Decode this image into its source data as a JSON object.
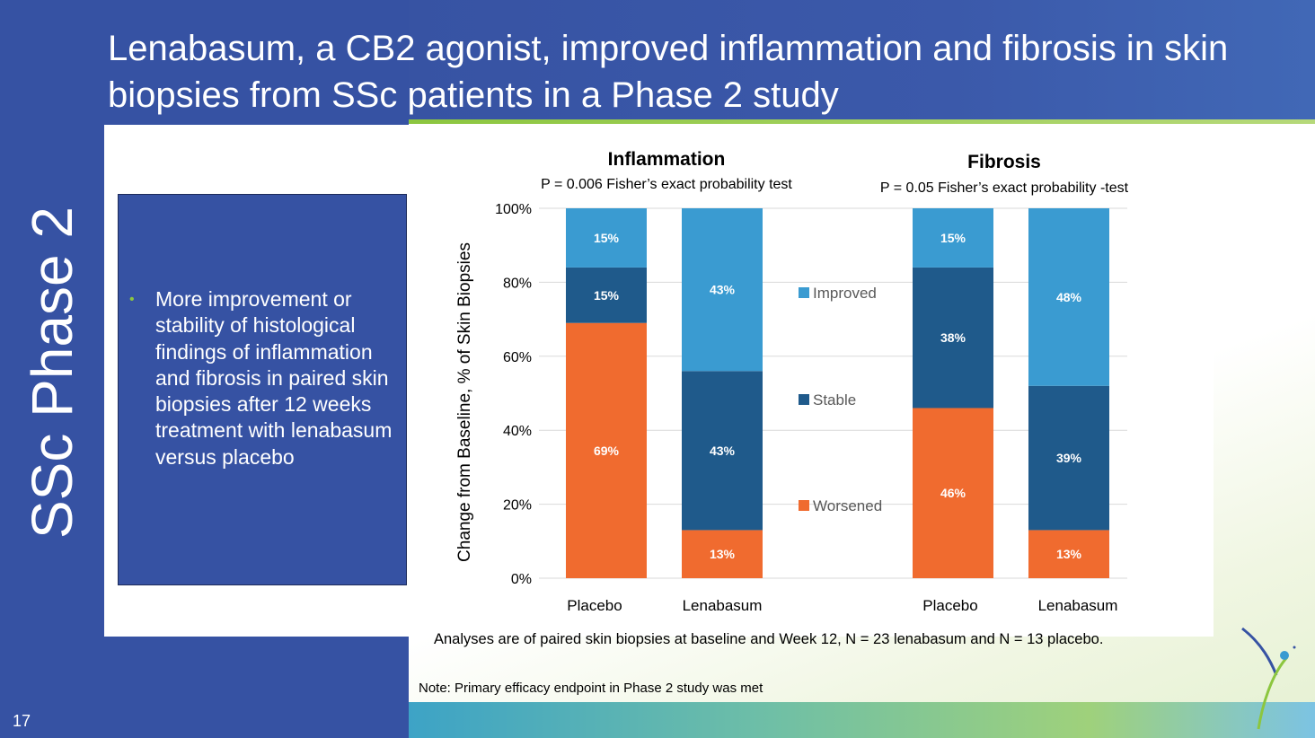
{
  "slide": {
    "title": "Lenabasum, a CB2 agonist, improved inflammation and fibrosis in skin biopsies from SSc patients in a Phase 2 study",
    "section_label": "SSc Phase 2",
    "page_number": "17",
    "bullets": [
      "More improvement or stability of histological findings of inflammation and fibrosis in paired skin biopsies after 12 weeks treatment with lenabasum versus placebo"
    ],
    "footnote": "Analyses are of paired skin biopsies at baseline and Week 12, N = 23 lenabasum and N = 13 placebo.",
    "note": "Note: Primary efficacy endpoint in Phase 2 study was met",
    "colors": {
      "navy": "#3652a3",
      "green_accent": "#8cc63f",
      "improved": "#3a9bd1",
      "stable": "#1f5a8b",
      "worsened": "#f06b2f"
    }
  },
  "chart_data": {
    "type": "bar",
    "stacked": true,
    "ylabel": "Change from Baseline, % of Skin Biopsies",
    "ylim": [
      0,
      100
    ],
    "yticks": [
      "0%",
      "20%",
      "40%",
      "60%",
      "80%",
      "100%"
    ],
    "grid": true,
    "legend_position": "center, between the two panels",
    "series": [
      {
        "name": "Worsened",
        "color": "#f06b2f"
      },
      {
        "name": "Stable",
        "color": "#1f5a8b"
      },
      {
        "name": "Improved",
        "color": "#3a9bd1"
      }
    ],
    "panels": [
      {
        "title": "Inflammation",
        "subtitle": "P = 0.006 Fisher’s exact probability test",
        "categories": [
          "Placebo",
          "Lenabasum"
        ],
        "bars": [
          {
            "category": "Placebo",
            "worsened": 69,
            "stable": 15,
            "improved": 15,
            "labels": [
              "69%",
              "15%",
              "15%"
            ]
          },
          {
            "category": "Lenabasum",
            "worsened": 13,
            "stable": 43,
            "improved": 43,
            "labels": [
              "13%",
              "43%",
              "43%"
            ]
          }
        ]
      },
      {
        "title": "Fibrosis",
        "subtitle": "P = 0.05 Fisher’s exact probability -test",
        "categories": [
          "Placebo",
          "Lenabasum"
        ],
        "bars": [
          {
            "category": "Placebo",
            "worsened": 46,
            "stable": 38,
            "improved": 15,
            "labels": [
              "46%",
              "38%",
              "15%"
            ]
          },
          {
            "category": "Lenabasum",
            "worsened": 13,
            "stable": 39,
            "improved": 48,
            "labels": [
              "13%",
              "39%",
              "48%"
            ]
          }
        ]
      }
    ]
  }
}
